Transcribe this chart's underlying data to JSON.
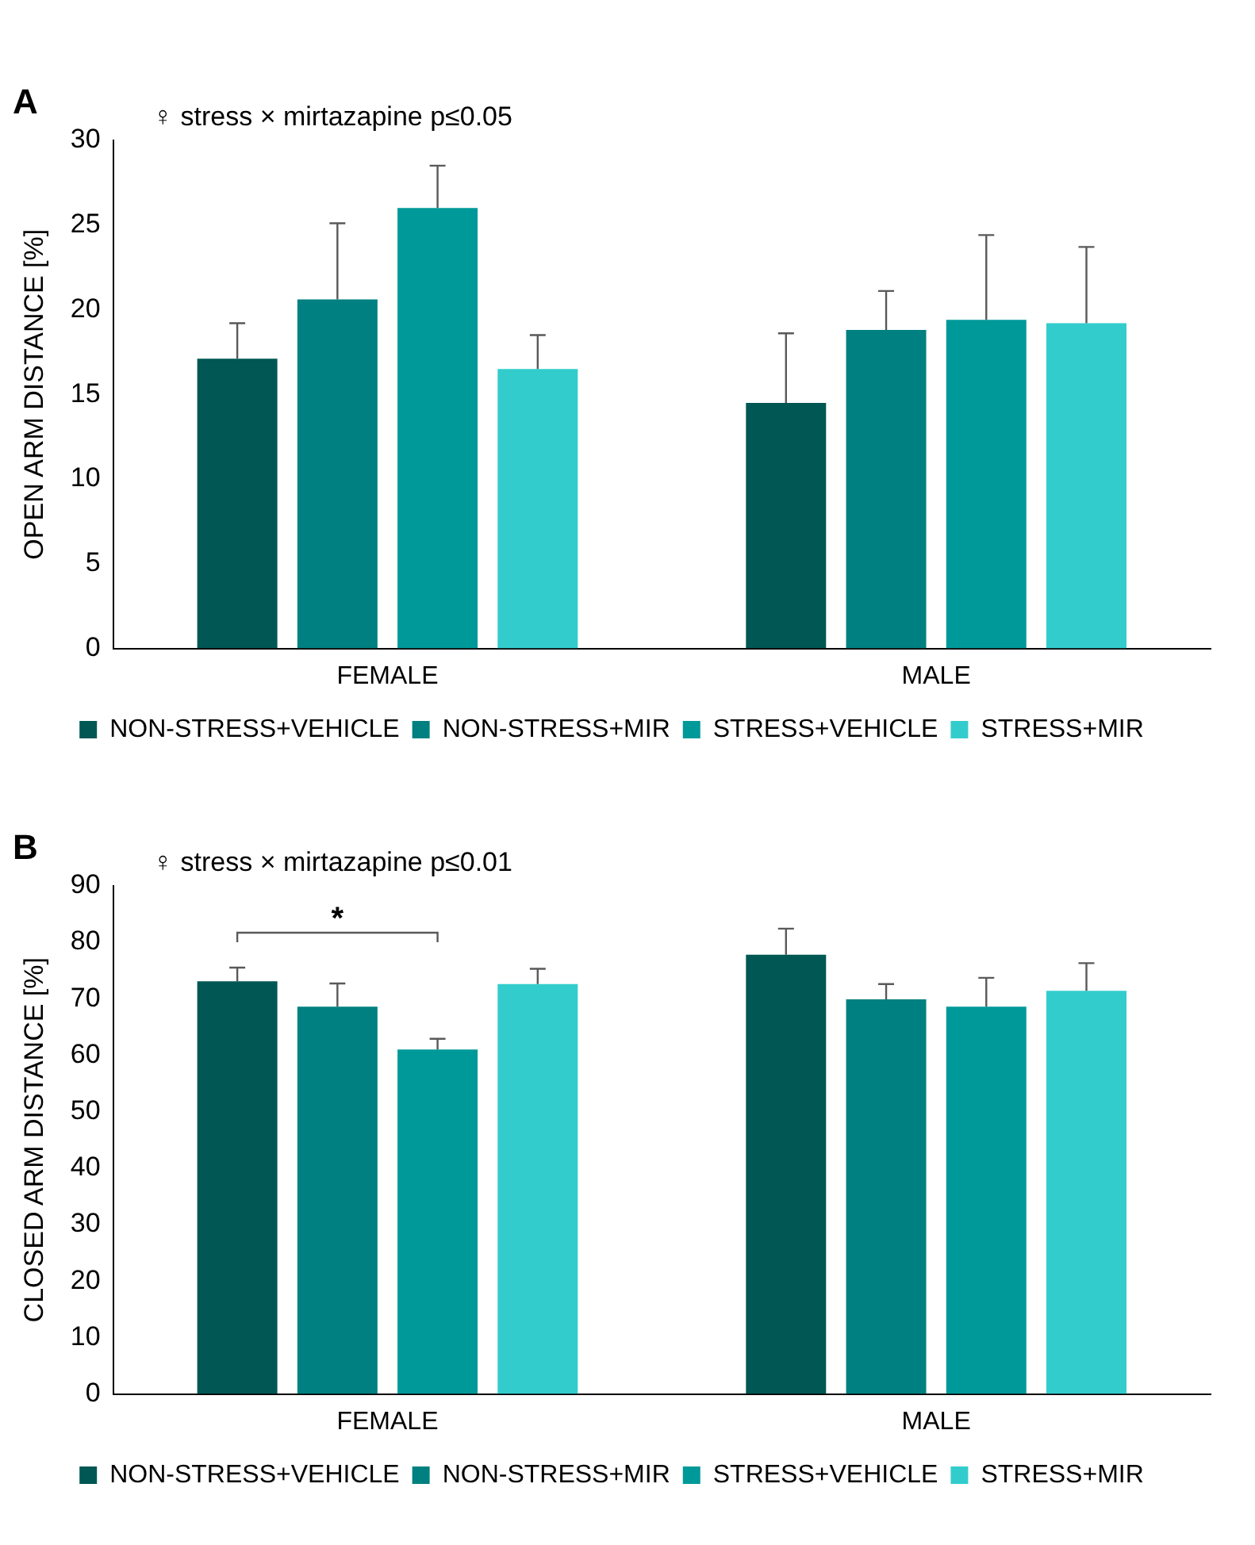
{
  "chart_data": [
    {
      "type": "bar",
      "title": "A",
      "ylabel": "OPEN ARM DISTANCE [%]",
      "categories": [
        "FEMALE",
        "MALE"
      ],
      "series": [
        {
          "name": "NON-STRESS+VEHICLE",
          "color": "#005753",
          "values": [
            17.1,
            14.5
          ],
          "errors": [
            [
              17.1,
              19.2
            ],
            [
              14.5,
              18.6
            ]
          ]
        },
        {
          "name": "NON-STRESS+MIR",
          "color": "#008080",
          "values": [
            20.6,
            18.8
          ],
          "errors": [
            [
              20.6,
              25.1
            ],
            [
              18.8,
              21.1
            ]
          ]
        },
        {
          "name": "STRESS+VEHICLE",
          "color": "#009999",
          "values": [
            26.0,
            19.4
          ],
          "errors": [
            [
              26.0,
              28.5
            ],
            [
              19.4,
              24.4
            ]
          ]
        },
        {
          "name": "STRESS+MIR",
          "color": "#33cccc",
          "values": [
            16.5,
            19.2
          ],
          "errors": [
            [
              16.5,
              18.5
            ],
            [
              19.2,
              23.7
            ]
          ]
        }
      ],
      "ylim": [
        0,
        30
      ],
      "yticks": [
        0,
        5,
        10,
        15,
        20,
        25,
        30
      ],
      "grid": false,
      "legend": "bottom",
      "annotations": [
        "♀ stress × mirtazapine p≤0.05"
      ]
    },
    {
      "type": "bar",
      "title": "B",
      "ylabel": "CLOSED ARM DISTANCE [%]",
      "categories": [
        "FEMALE",
        "MALE"
      ],
      "series": [
        {
          "name": "NON-STRESS+VEHICLE",
          "color": "#005753",
          "values": [
            73.1,
            77.8
          ],
          "errors": [
            [
              73.1,
              75.5
            ],
            [
              77.8,
              82.4
            ]
          ]
        },
        {
          "name": "NON-STRESS+MIR",
          "color": "#008080",
          "values": [
            68.6,
            69.9
          ],
          "errors": [
            [
              68.6,
              72.7
            ],
            [
              69.9,
              72.6
            ]
          ]
        },
        {
          "name": "STRESS+VEHICLE",
          "color": "#009999",
          "values": [
            61.0,
            68.6
          ],
          "errors": [
            [
              61.0,
              62.9
            ],
            [
              68.6,
              73.7
            ]
          ]
        },
        {
          "name": "STRESS+MIR",
          "color": "#33cccc",
          "values": [
            72.6,
            71.4
          ],
          "errors": [
            [
              72.6,
              75.3
            ],
            [
              71.4,
              76.3
            ]
          ]
        }
      ],
      "ylim": [
        0,
        90
      ],
      "yticks": [
        0,
        10,
        20,
        30,
        40,
        50,
        60,
        70,
        80,
        90
      ],
      "grid": false,
      "legend": "bottom",
      "annotations": [
        "♀ stress × mirtazapine p≤0.01",
        "*"
      ]
    }
  ]
}
